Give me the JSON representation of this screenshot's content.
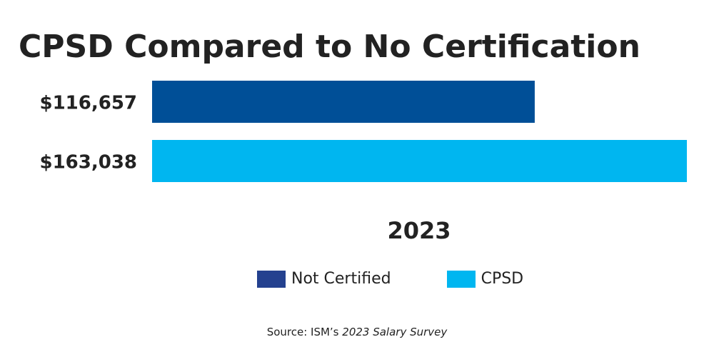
{
  "title": "CPSD Compared to No Certification",
  "source": {
    "prefix": "Source: ISM’s ",
    "publication": "2023 Salary Survey"
  },
  "colors": {
    "not_certified": "#004F97",
    "cpsd": "#00B6F0",
    "legend_not_certified": "#24418F"
  },
  "chart_data": {
    "type": "bar",
    "orientation": "horizontal",
    "title": "CPSD Compared to No Certification",
    "xlabel": "2023",
    "ylabel": "",
    "categories": [
      "2023"
    ],
    "series": [
      {
        "name": "Not Certified",
        "values": [
          116657
        ],
        "label": "$116,657"
      },
      {
        "name": "CPSD",
        "values": [
          163038
        ],
        "label": "$163,038"
      }
    ],
    "xlim": [
      0,
      163038
    ],
    "grid": false,
    "legend": "bottom"
  }
}
